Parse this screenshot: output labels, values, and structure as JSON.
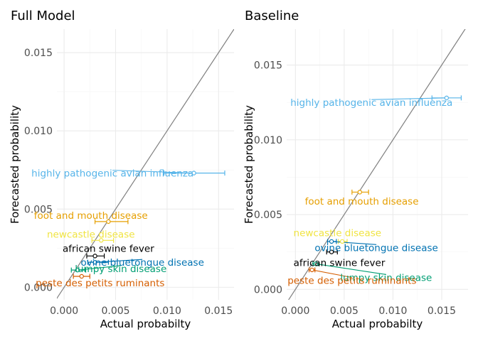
{
  "chart_data": [
    {
      "type": "scatter",
      "title": "Full Model",
      "xlabel": "Actual probabilty",
      "ylabel": "Forecasted probability",
      "xlim": [
        -0.0007,
        0.0165
      ],
      "ylim": [
        -0.0008,
        0.0165
      ],
      "xticks": [
        0.0,
        0.005,
        0.01,
        0.015
      ],
      "xtick_labels": [
        "0.000",
        "0.005",
        "0.010",
        "0.015"
      ],
      "yticks": [
        0.0,
        0.005,
        0.01,
        0.015
      ],
      "ytick_labels": [
        "0.000",
        "0.005",
        "0.010",
        "0.015"
      ],
      "reference_line": "y = x",
      "points": [
        {
          "label": "highly pathogenic avian influenza",
          "x": 0.0126,
          "xmin": 0.0097,
          "xmax": 0.0156,
          "y": 0.0073,
          "color": "#56B4E9"
        },
        {
          "label": "foot and mouth disease",
          "x": 0.0043,
          "xmin": 0.003,
          "xmax": 0.0062,
          "y": 0.0042,
          "color": "#E69F00"
        },
        {
          "label": "newcastle disease",
          "x": 0.0036,
          "xmin": 0.0027,
          "xmax": 0.0048,
          "y": 0.003,
          "color": "#F0E442"
        },
        {
          "label": "african swine fever",
          "x": 0.003,
          "xmin": 0.0022,
          "xmax": 0.0039,
          "y": 0.002,
          "color": "#000000"
        },
        {
          "label": "ovine bluetongue disease",
          "x": 0.003,
          "xmin": 0.0023,
          "xmax": 0.0043,
          "y": 0.0016,
          "color": "#0072B2"
        },
        {
          "label": "lumpy skin disease",
          "x": 0.0013,
          "xmin": 0.0007,
          "xmax": 0.0021,
          "y": 0.0011,
          "color": "#009E73"
        },
        {
          "label": "peste des petits ruminants",
          "x": 0.0017,
          "xmin": 0.0009,
          "xmax": 0.0025,
          "y": 0.0007,
          "color": "#D55E00"
        }
      ],
      "label_positions_data": [
        [
          0.0047,
          0.0073
        ],
        [
          0.0026,
          0.0046
        ],
        [
          0.0026,
          0.0034
        ],
        [
          0.0043,
          0.0025
        ],
        [
          0.0076,
          0.0016
        ],
        [
          0.0055,
          0.0012
        ],
        [
          0.0035,
          0.0003
        ]
      ]
    },
    {
      "type": "scatter",
      "title": "Baseline",
      "xlabel": "Actual probabilty",
      "ylabel": "Forecasted probability",
      "xlim": [
        -0.0009,
        0.0177
      ],
      "ylim": [
        -0.0007,
        0.0174
      ],
      "xticks": [
        0.0,
        0.005,
        0.01,
        0.015
      ],
      "xtick_labels": [
        "0.000",
        "0.005",
        "0.010",
        "0.015"
      ],
      "yticks": [
        0.0,
        0.005,
        0.01,
        0.015
      ],
      "ytick_labels": [
        "0.000",
        "0.005",
        "0.010",
        "0.015"
      ],
      "reference_line": "y = x",
      "points": [
        {
          "label": "highly pathogenic avian influenza",
          "x": 0.0155,
          "xmin": 0.014,
          "xmax": 0.017,
          "y": 0.0128,
          "color": "#56B4E9"
        },
        {
          "label": "foot and mouth disease",
          "x": 0.0066,
          "xmin": 0.0058,
          "xmax": 0.0075,
          "y": 0.0065,
          "color": "#E69F00"
        },
        {
          "label": "newcastle disease",
          "x": 0.0048,
          "xmin": 0.0044,
          "xmax": 0.0053,
          "y": 0.0032,
          "color": "#F0E442"
        },
        {
          "label": "ovine bluetongue disease",
          "x": 0.0037,
          "xmin": 0.0033,
          "xmax": 0.0042,
          "y": 0.0032,
          "color": "#0072B2"
        },
        {
          "label": "african swine fever",
          "x": 0.0037,
          "xmin": 0.0032,
          "xmax": 0.0043,
          "y": 0.0025,
          "color": "#000000"
        },
        {
          "label": "lumpy skin disease",
          "x": 0.0021,
          "xmin": 0.0018,
          "xmax": 0.0024,
          "y": 0.0017,
          "color": "#009E73"
        },
        {
          "label": "peste des petits ruminants",
          "x": 0.0017,
          "xmin": 0.0014,
          "xmax": 0.002,
          "y": 0.0013,
          "color": "#D55E00"
        }
      ],
      "label_positions_data": [
        [
          0.0078,
          0.0125
        ],
        [
          0.0068,
          0.0059
        ],
        [
          0.0043,
          0.0038
        ],
        [
          0.0083,
          0.0028
        ],
        [
          0.0045,
          0.0018
        ],
        [
          0.0093,
          0.0008
        ],
        [
          0.0058,
          0.0006
        ]
      ]
    }
  ]
}
